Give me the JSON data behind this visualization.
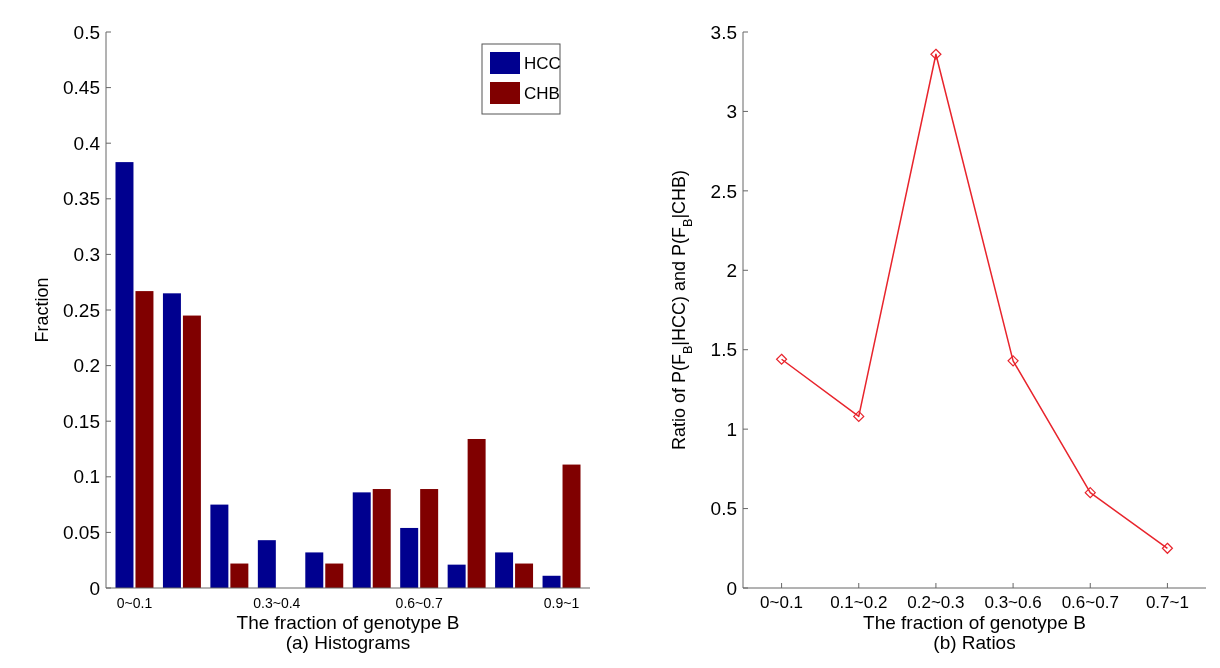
{
  "chart_data": [
    {
      "type": "bar",
      "xlabel": "The fraction of genotype B",
      "ylabel": "Fraction",
      "annotations": [
        "(a) Histograms"
      ],
      "categories": [
        "0~0.1",
        null,
        null,
        "0.3~0.4",
        null,
        null,
        "0.6~0.7",
        null,
        null,
        "0.9~1"
      ],
      "series": [
        {
          "name": "HCC",
          "color": "#00008f",
          "values": [
            0.383,
            0.265,
            0.075,
            0.043,
            0.032,
            0.086,
            0.054,
            0.021,
            0.032,
            0.011
          ]
        },
        {
          "name": "CHB",
          "color": "#800000",
          "values": [
            0.267,
            0.245,
            0.022,
            0,
            0.022,
            0.089,
            0.089,
            0.134,
            0.022,
            0.111
          ]
        }
      ],
      "ylim": [
        0,
        0.5
      ],
      "yticks": [
        0,
        0.05,
        0.1,
        0.15,
        0.2,
        0.25,
        0.3,
        0.35,
        0.4,
        0.45,
        0.5
      ],
      "legend": "top right",
      "grid": false
    },
    {
      "type": "line",
      "xlabel": "The fraction of genotype B",
      "ylabel": "Ratio of  P(F$_{B}$|HCC) and P(F$_{B}$|CHB)",
      "annotations": [
        "(b) Ratios"
      ],
      "categories": [
        "0~0.1",
        "0.1~0.2",
        "0.2~0.3",
        "0.3~0.6",
        "0.6~0.7",
        "0.7~1"
      ],
      "series": [
        {
          "color": "#e8242c",
          "values": [
            1.44,
            1.08,
            3.36,
            1.43,
            0.6,
            0.25
          ]
        }
      ],
      "ylim": [
        0,
        3.5
      ],
      "yticks": [
        0,
        0.5,
        1,
        1.5,
        2,
        2.5,
        3,
        3.5
      ],
      "marker": "diamond",
      "line_style": "solid",
      "grid": false
    }
  ]
}
